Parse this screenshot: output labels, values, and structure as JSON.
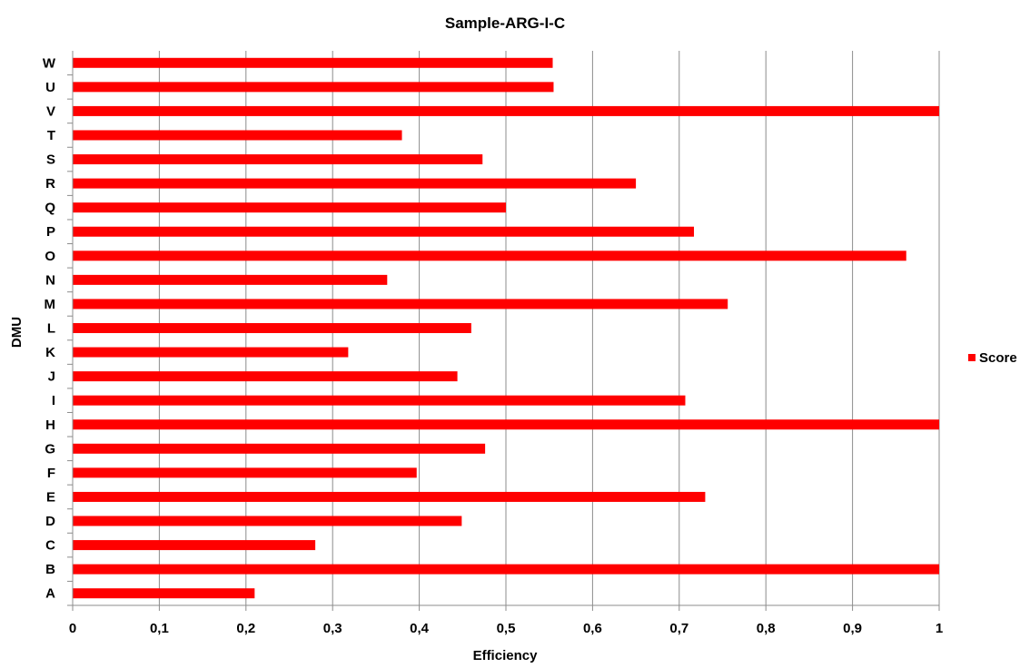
{
  "chart_data": {
    "type": "bar",
    "orientation": "horizontal",
    "title": "Sample-ARG-I-C",
    "xlabel": "Efficiency",
    "ylabel": "DMU",
    "xlim": [
      0,
      1
    ],
    "x_ticks": [
      "0",
      "0,1",
      "0,2",
      "0,3",
      "0,4",
      "0,5",
      "0,6",
      "0,7",
      "0,8",
      "0,9",
      "1"
    ],
    "grid": "vertical",
    "legend": "right",
    "categories": [
      "A",
      "B",
      "C",
      "D",
      "E",
      "F",
      "G",
      "H",
      "I",
      "J",
      "K",
      "L",
      "M",
      "N",
      "O",
      "P",
      "Q",
      "R",
      "S",
      "T",
      "V",
      "U",
      "W"
    ],
    "series": [
      {
        "name": "Score",
        "color": "#ff0000",
        "values": [
          0.21,
          1.0,
          0.28,
          0.449,
          0.73,
          0.397,
          0.476,
          1.0,
          0.707,
          0.444,
          0.318,
          0.46,
          0.756,
          0.363,
          0.962,
          0.717,
          0.5,
          0.65,
          0.473,
          0.38,
          1.0,
          0.555,
          0.554
        ]
      }
    ]
  }
}
